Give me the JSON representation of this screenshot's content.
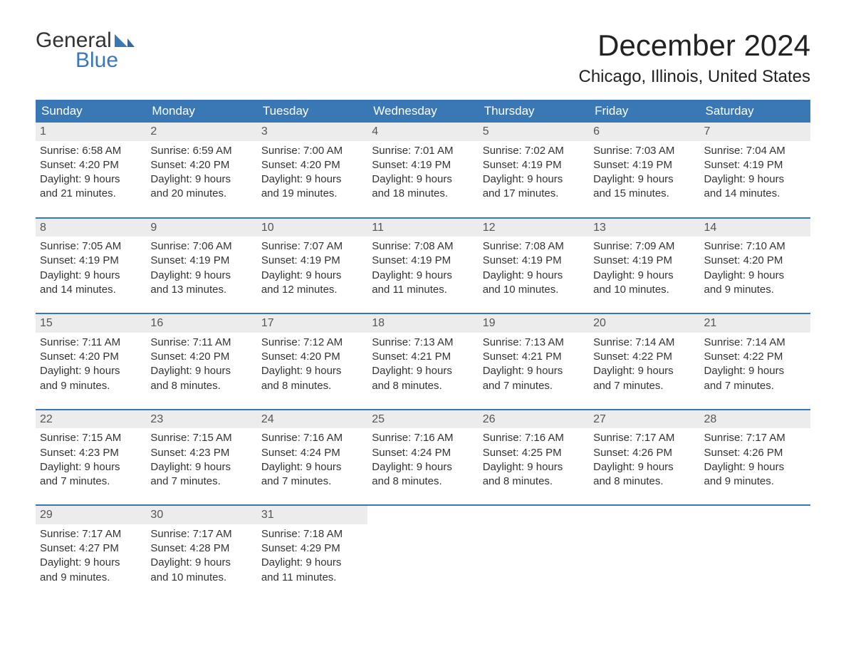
{
  "logo": {
    "word1": "General",
    "word2": "Blue"
  },
  "colors": {
    "accent": "#3a78b5",
    "header_bg": "#3a78b5",
    "header_text": "#ffffff",
    "daynum_bg": "#ececec",
    "daynum_text": "#555555",
    "body_text": "#333333",
    "page_bg": "#ffffff"
  },
  "title": "December 2024",
  "location": "Chicago, Illinois, United States",
  "day_names": [
    "Sunday",
    "Monday",
    "Tuesday",
    "Wednesday",
    "Thursday",
    "Friday",
    "Saturday"
  ],
  "weeks": [
    [
      {
        "n": "1",
        "sunrise": "Sunrise: 6:58 AM",
        "sunset": "Sunset: 4:20 PM",
        "d1": "Daylight: 9 hours",
        "d2": "and 21 minutes."
      },
      {
        "n": "2",
        "sunrise": "Sunrise: 6:59 AM",
        "sunset": "Sunset: 4:20 PM",
        "d1": "Daylight: 9 hours",
        "d2": "and 20 minutes."
      },
      {
        "n": "3",
        "sunrise": "Sunrise: 7:00 AM",
        "sunset": "Sunset: 4:20 PM",
        "d1": "Daylight: 9 hours",
        "d2": "and 19 minutes."
      },
      {
        "n": "4",
        "sunrise": "Sunrise: 7:01 AM",
        "sunset": "Sunset: 4:19 PM",
        "d1": "Daylight: 9 hours",
        "d2": "and 18 minutes."
      },
      {
        "n": "5",
        "sunrise": "Sunrise: 7:02 AM",
        "sunset": "Sunset: 4:19 PM",
        "d1": "Daylight: 9 hours",
        "d2": "and 17 minutes."
      },
      {
        "n": "6",
        "sunrise": "Sunrise: 7:03 AM",
        "sunset": "Sunset: 4:19 PM",
        "d1": "Daylight: 9 hours",
        "d2": "and 15 minutes."
      },
      {
        "n": "7",
        "sunrise": "Sunrise: 7:04 AM",
        "sunset": "Sunset: 4:19 PM",
        "d1": "Daylight: 9 hours",
        "d2": "and 14 minutes."
      }
    ],
    [
      {
        "n": "8",
        "sunrise": "Sunrise: 7:05 AM",
        "sunset": "Sunset: 4:19 PM",
        "d1": "Daylight: 9 hours",
        "d2": "and 14 minutes."
      },
      {
        "n": "9",
        "sunrise": "Sunrise: 7:06 AM",
        "sunset": "Sunset: 4:19 PM",
        "d1": "Daylight: 9 hours",
        "d2": "and 13 minutes."
      },
      {
        "n": "10",
        "sunrise": "Sunrise: 7:07 AM",
        "sunset": "Sunset: 4:19 PM",
        "d1": "Daylight: 9 hours",
        "d2": "and 12 minutes."
      },
      {
        "n": "11",
        "sunrise": "Sunrise: 7:08 AM",
        "sunset": "Sunset: 4:19 PM",
        "d1": "Daylight: 9 hours",
        "d2": "and 11 minutes."
      },
      {
        "n": "12",
        "sunrise": "Sunrise: 7:08 AM",
        "sunset": "Sunset: 4:19 PM",
        "d1": "Daylight: 9 hours",
        "d2": "and 10 minutes."
      },
      {
        "n": "13",
        "sunrise": "Sunrise: 7:09 AM",
        "sunset": "Sunset: 4:19 PM",
        "d1": "Daylight: 9 hours",
        "d2": "and 10 minutes."
      },
      {
        "n": "14",
        "sunrise": "Sunrise: 7:10 AM",
        "sunset": "Sunset: 4:20 PM",
        "d1": "Daylight: 9 hours",
        "d2": "and 9 minutes."
      }
    ],
    [
      {
        "n": "15",
        "sunrise": "Sunrise: 7:11 AM",
        "sunset": "Sunset: 4:20 PM",
        "d1": "Daylight: 9 hours",
        "d2": "and 9 minutes."
      },
      {
        "n": "16",
        "sunrise": "Sunrise: 7:11 AM",
        "sunset": "Sunset: 4:20 PM",
        "d1": "Daylight: 9 hours",
        "d2": "and 8 minutes."
      },
      {
        "n": "17",
        "sunrise": "Sunrise: 7:12 AM",
        "sunset": "Sunset: 4:20 PM",
        "d1": "Daylight: 9 hours",
        "d2": "and 8 minutes."
      },
      {
        "n": "18",
        "sunrise": "Sunrise: 7:13 AM",
        "sunset": "Sunset: 4:21 PM",
        "d1": "Daylight: 9 hours",
        "d2": "and 8 minutes."
      },
      {
        "n": "19",
        "sunrise": "Sunrise: 7:13 AM",
        "sunset": "Sunset: 4:21 PM",
        "d1": "Daylight: 9 hours",
        "d2": "and 7 minutes."
      },
      {
        "n": "20",
        "sunrise": "Sunrise: 7:14 AM",
        "sunset": "Sunset: 4:22 PM",
        "d1": "Daylight: 9 hours",
        "d2": "and 7 minutes."
      },
      {
        "n": "21",
        "sunrise": "Sunrise: 7:14 AM",
        "sunset": "Sunset: 4:22 PM",
        "d1": "Daylight: 9 hours",
        "d2": "and 7 minutes."
      }
    ],
    [
      {
        "n": "22",
        "sunrise": "Sunrise: 7:15 AM",
        "sunset": "Sunset: 4:23 PM",
        "d1": "Daylight: 9 hours",
        "d2": "and 7 minutes."
      },
      {
        "n": "23",
        "sunrise": "Sunrise: 7:15 AM",
        "sunset": "Sunset: 4:23 PM",
        "d1": "Daylight: 9 hours",
        "d2": "and 7 minutes."
      },
      {
        "n": "24",
        "sunrise": "Sunrise: 7:16 AM",
        "sunset": "Sunset: 4:24 PM",
        "d1": "Daylight: 9 hours",
        "d2": "and 7 minutes."
      },
      {
        "n": "25",
        "sunrise": "Sunrise: 7:16 AM",
        "sunset": "Sunset: 4:24 PM",
        "d1": "Daylight: 9 hours",
        "d2": "and 8 minutes."
      },
      {
        "n": "26",
        "sunrise": "Sunrise: 7:16 AM",
        "sunset": "Sunset: 4:25 PM",
        "d1": "Daylight: 9 hours",
        "d2": "and 8 minutes."
      },
      {
        "n": "27",
        "sunrise": "Sunrise: 7:17 AM",
        "sunset": "Sunset: 4:26 PM",
        "d1": "Daylight: 9 hours",
        "d2": "and 8 minutes."
      },
      {
        "n": "28",
        "sunrise": "Sunrise: 7:17 AM",
        "sunset": "Sunset: 4:26 PM",
        "d1": "Daylight: 9 hours",
        "d2": "and 9 minutes."
      }
    ],
    [
      {
        "n": "29",
        "sunrise": "Sunrise: 7:17 AM",
        "sunset": "Sunset: 4:27 PM",
        "d1": "Daylight: 9 hours",
        "d2": "and 9 minutes."
      },
      {
        "n": "30",
        "sunrise": "Sunrise: 7:17 AM",
        "sunset": "Sunset: 4:28 PM",
        "d1": "Daylight: 9 hours",
        "d2": "and 10 minutes."
      },
      {
        "n": "31",
        "sunrise": "Sunrise: 7:18 AM",
        "sunset": "Sunset: 4:29 PM",
        "d1": "Daylight: 9 hours",
        "d2": "and 11 minutes."
      },
      null,
      null,
      null,
      null
    ]
  ]
}
